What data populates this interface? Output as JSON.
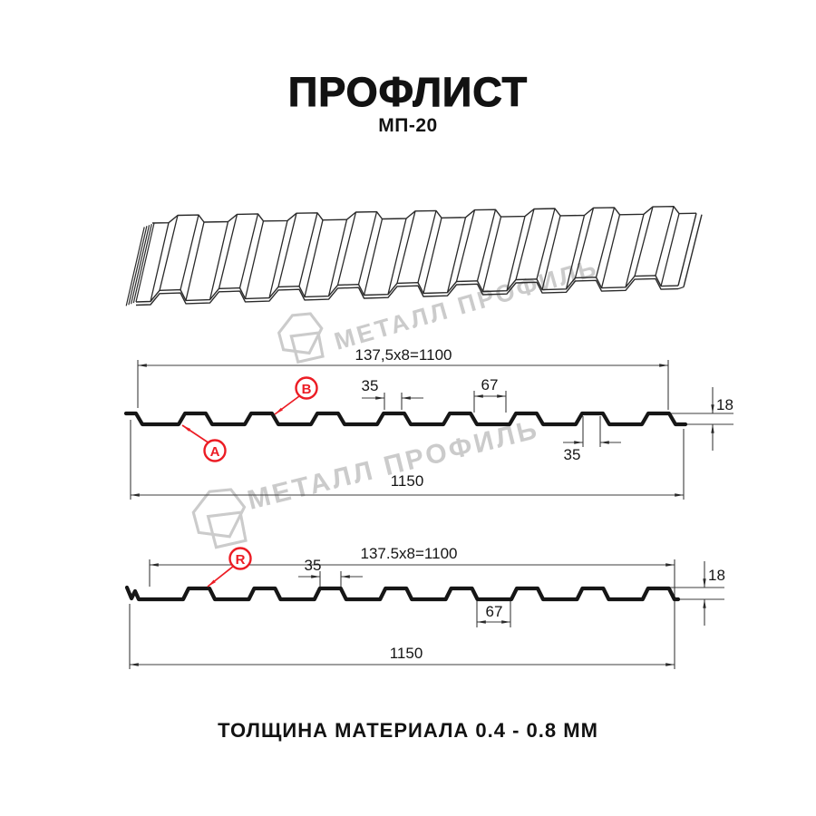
{
  "title": "ПРОФЛИСТ",
  "subtitle": "МП-20",
  "footer": "ТОЛЩИНА МАТЕРИАЛА 0.4 - 0.8 ММ",
  "watermark": {
    "brand": "МЕТАЛЛ ПРОФИЛЬ"
  },
  "colors": {
    "accent_red": "#ec1c24",
    "ink": "#161616",
    "watermark_gray": "#cbcbcb"
  },
  "section1": {
    "label_a": "A",
    "label_b": "B",
    "dim_top": "137,5x8=1100",
    "dim_rib_top": "35",
    "dim_valley": "67",
    "dim_rib_bottom": "35",
    "dim_height": "18",
    "dim_overall": "1150"
  },
  "section2": {
    "label_r": "R",
    "dim_top": "137.5x8=1100",
    "dim_rib": "35",
    "dim_valley": "67",
    "dim_height": "18",
    "dim_overall": "1150"
  }
}
